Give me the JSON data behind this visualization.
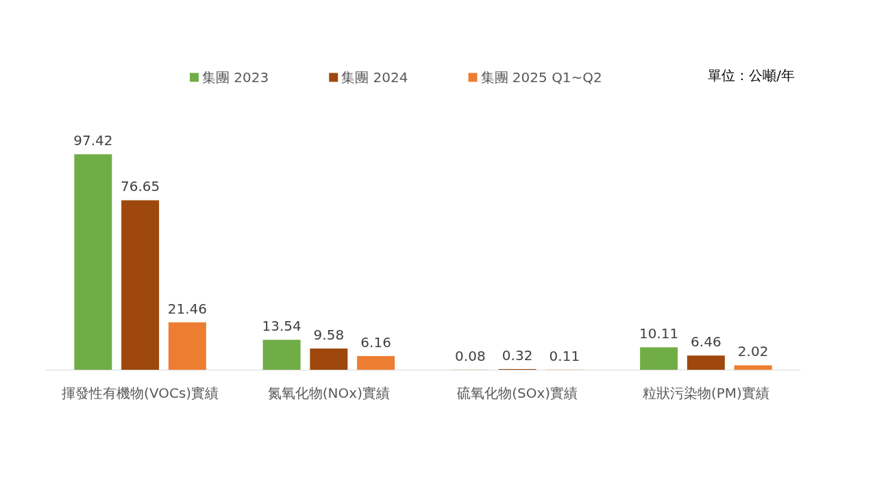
{
  "chart_data": {
    "type": "bar",
    "categories": [
      "揮發性有機物(VOCs)實績",
      "氮氧化物(NOx)實績",
      "硫氧化物(SOx)實績",
      "粒狀污染物(PM)實績"
    ],
    "series": [
      {
        "name": "集團 2023",
        "color": "#70ad47",
        "values": [
          97.42,
          13.54,
          0.08,
          10.11
        ]
      },
      {
        "name": "集團 2024",
        "color": "#9e480e",
        "values": [
          76.65,
          9.58,
          0.32,
          6.46
        ]
      },
      {
        "name": "集團 2025 Q1~Q2",
        "color": "#ed7d31",
        "values": [
          21.46,
          6.16,
          0.11,
          2.02
        ]
      }
    ],
    "data_labels": true,
    "legend": "top",
    "annotations": [
      "單位：公噸/年"
    ]
  }
}
